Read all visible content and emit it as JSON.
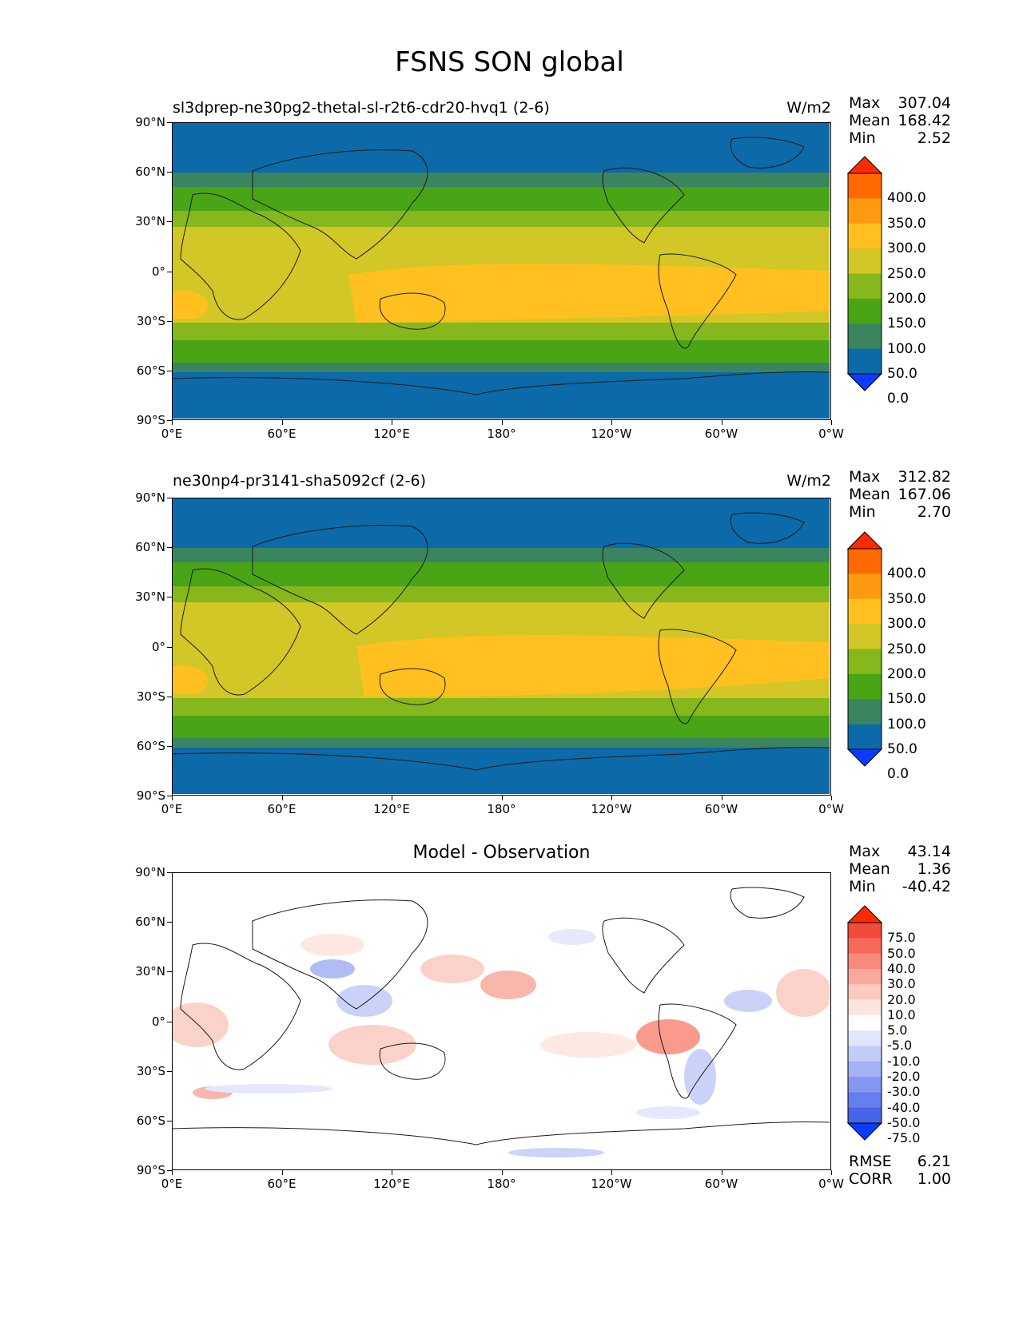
{
  "title": "FSNS SON global",
  "panels": [
    {
      "name": "test",
      "label": "sl3dprep-ne30pg2-thetal-sl-r2t6-cdr20-hvq1 (2-6)",
      "units": "W/m2",
      "stats": {
        "max_label": "Max",
        "max": "307.04",
        "mean_label": "Mean",
        "mean": "168.42",
        "min_label": "Min",
        "min": "2.52"
      }
    },
    {
      "name": "reference",
      "label": "ne30np4-pr3141-sha5092cf (2-6)",
      "units": "W/m2",
      "stats": {
        "max_label": "Max",
        "max": "312.82",
        "mean_label": "Mean",
        "mean": "167.06",
        "min_label": "Min",
        "min": "2.70"
      }
    },
    {
      "name": "diff",
      "label": "Model - Observation",
      "stats": {
        "max_label": "Max",
        "max": "43.14",
        "mean_label": "Mean",
        "mean": "1.36",
        "min_label": "Min",
        "min": "-40.42"
      },
      "extra": {
        "rmse_label": "RMSE",
        "rmse": "6.21",
        "corr_label": "CORR",
        "corr": "1.00"
      }
    }
  ],
  "lat_ticks": [
    "90°N",
    "60°N",
    "30°N",
    "0°",
    "30°S",
    "60°S",
    "90°S"
  ],
  "lon_ticks": [
    "0°E",
    "60°E",
    "120°E",
    "180°",
    "120°W",
    "60°W",
    "0°W"
  ],
  "abs_colorbar": {
    "levels": [
      "400.0",
      "350.0",
      "300.0",
      "250.0",
      "200.0",
      "150.0",
      "100.0",
      "50.0",
      "0.0"
    ],
    "colors_top_to_bottom": [
      "#ff2a00",
      "#ff6a00",
      "#ff9a10",
      "#ffc020",
      "#d2c726",
      "#86b71c",
      "#4aa516",
      "#3a8560",
      "#0c6aa8",
      "#0a3cff"
    ]
  },
  "diff_colorbar": {
    "levels": [
      "75.0",
      "50.0",
      "40.0",
      "30.0",
      "20.0",
      "10.0",
      "5.0",
      "-5.0",
      "-10.0",
      "-20.0",
      "-30.0",
      "-40.0",
      "-50.0",
      "-75.0"
    ],
    "colors_top_to_bottom": [
      "#ff2a00",
      "#f24a3c",
      "#f56a5a",
      "#f78a7a",
      "#f9aa9c",
      "#fbcbc0",
      "#fde5df",
      "#ffffff",
      "#e2e6fd",
      "#c3cbf9",
      "#a4b1f5",
      "#8597f1",
      "#667ded",
      "#4763e9",
      "#0a3cff"
    ]
  }
}
